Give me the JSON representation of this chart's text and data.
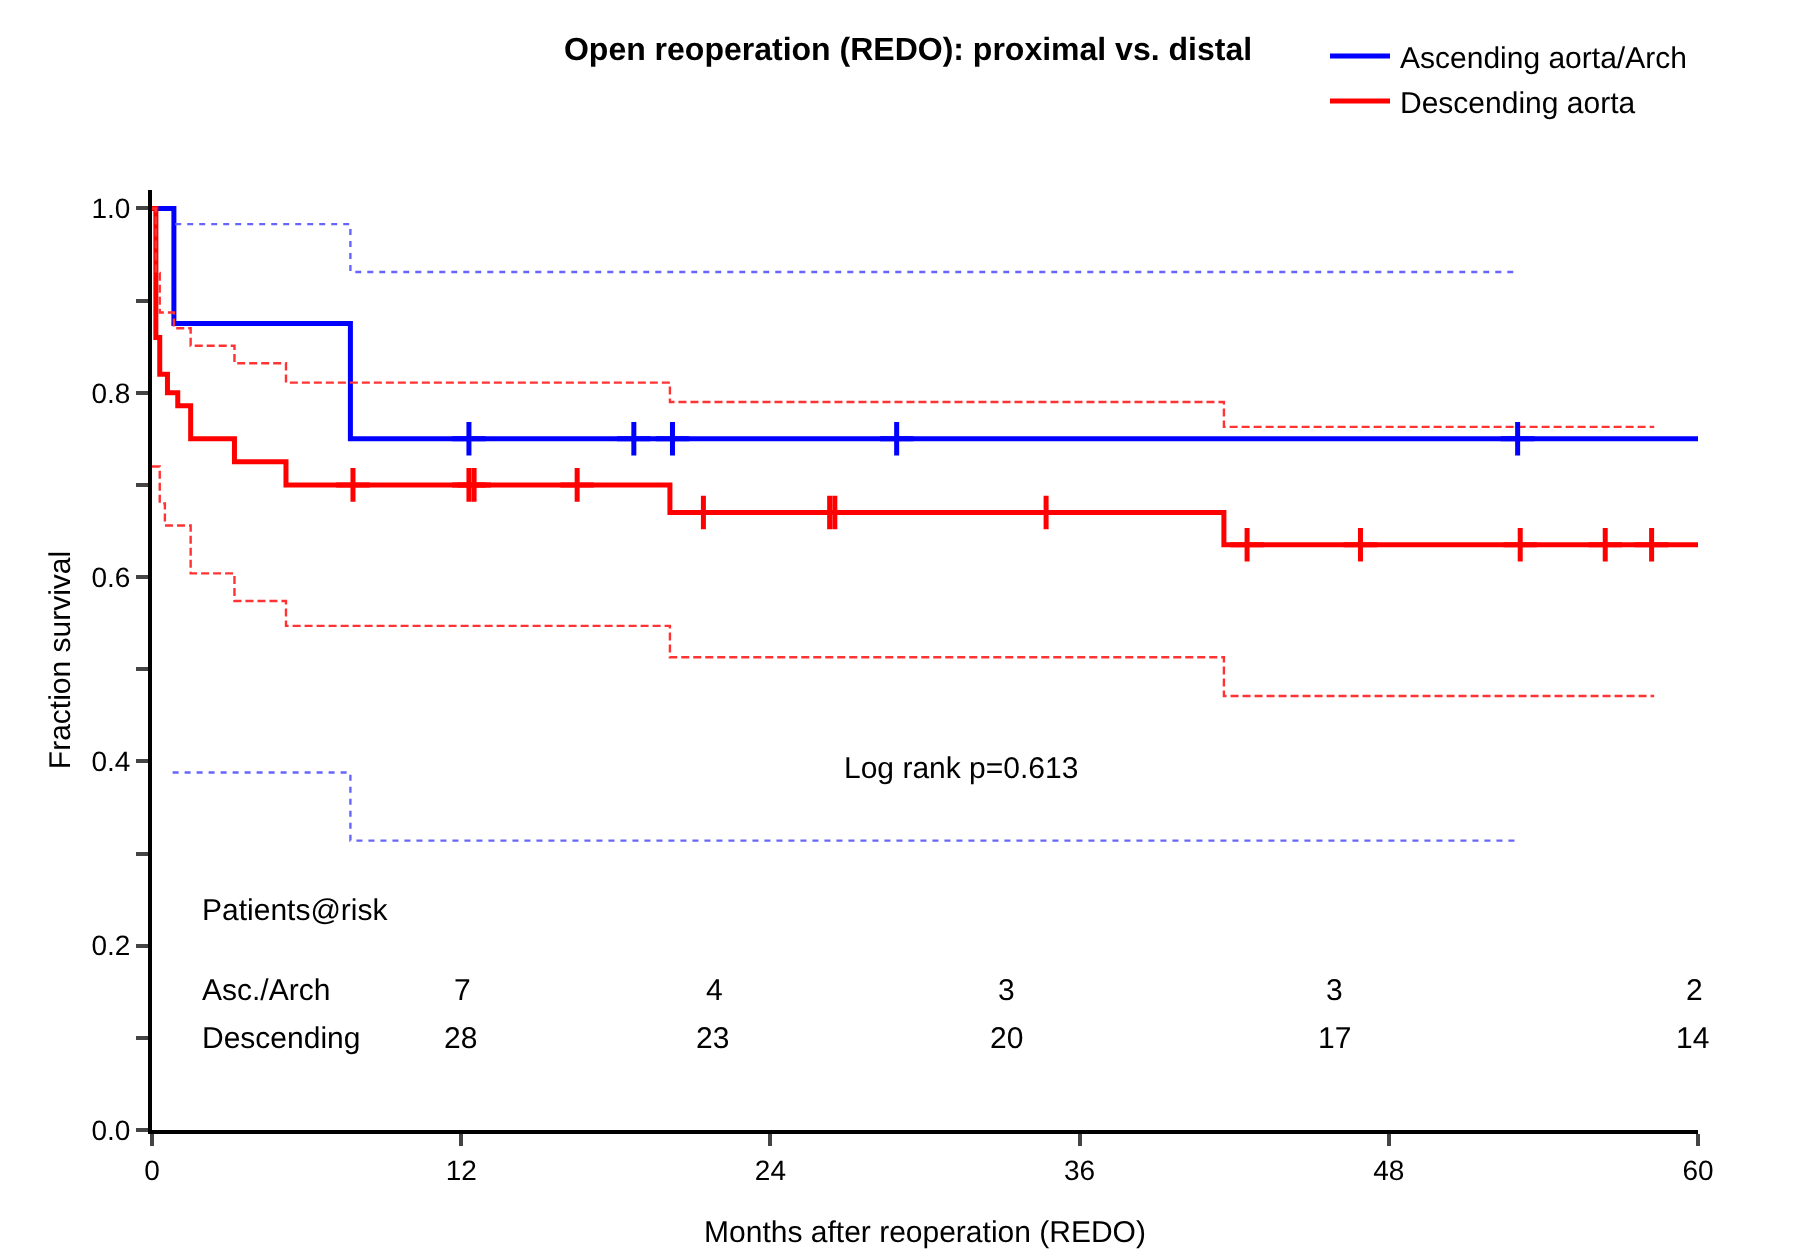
{
  "chart_data": {
    "type": "step",
    "title": "Open reoperation (REDO): proximal vs. distal",
    "xlabel": "Months after reoperation (REDO)",
    "ylabel": "Fraction survival",
    "xlim": [
      0,
      60
    ],
    "xticks": [
      0,
      12,
      24,
      36,
      48,
      60
    ],
    "ylim": [
      0,
      1.02
    ],
    "yticks": [
      {
        "value": 0,
        "label": "0.0"
      },
      {
        "value": 0.1,
        "label": null
      },
      {
        "value": 0.2,
        "label": "0.2"
      },
      {
        "value": 0.3,
        "label": null
      },
      {
        "value": 0.4,
        "label": "0.4"
      },
      {
        "value": 0.5,
        "label": null
      },
      {
        "value": 0.6,
        "label": "0.6"
      },
      {
        "value": 0.7,
        "label": null
      },
      {
        "value": 0.8,
        "label": "0.8"
      },
      {
        "value": 0.9,
        "label": null
      },
      {
        "value": 1,
        "label": "1.0"
      }
    ],
    "grid": false,
    "legend": "top right",
    "series": [
      {
        "name": "Ascending aorta/Arch",
        "color": "#0000ff",
        "line_style": "solid",
        "x": [
          0,
          0.85,
          7.7,
          60
        ],
        "values": [
          1.0,
          0.875,
          0.75,
          0.75
        ]
      },
      {
        "name": "Descending aorta",
        "color": "#ff0000",
        "line_style": "solid",
        "x": [
          0,
          0.15,
          0.3,
          0.6,
          1.0,
          1.5,
          3.2,
          5.2,
          20.1,
          41.6,
          60
        ],
        "values": [
          1.0,
          0.86,
          0.82,
          0.8,
          0.786,
          0.75,
          0.725,
          0.7,
          0.67,
          0.635,
          0.635
        ]
      },
      {
        "color": "#6666ff",
        "line_style": "dotted",
        "x": [
          0.9,
          7.7,
          52.9
        ],
        "values": [
          0.983,
          0.931,
          0.931
        ]
      },
      {
        "color": "#6666ff",
        "line_style": "dotted",
        "x": [
          0.8,
          7.7,
          52.9
        ],
        "values": [
          0.388,
          0.314,
          0.314
        ]
      },
      {
        "color": "#ff3333",
        "line_style": "dashed",
        "x": [
          0,
          0.15,
          0.3,
          0.85,
          1.5,
          3.2,
          5.2,
          20.1,
          41.6,
          58.3
        ],
        "values": [
          1.0,
          0.93,
          0.887,
          0.87,
          0.851,
          0.832,
          0.811,
          0.79,
          0.763,
          0.763
        ]
      },
      {
        "color": "#ff3333",
        "line_style": "dashed",
        "x": [
          0,
          0.3,
          0.5,
          1.5,
          3.2,
          5.2,
          20.1,
          41.6,
          58.3
        ],
        "values": [
          0.72,
          0.68,
          0.656,
          0.604,
          0.574,
          0.547,
          0.513,
          0.471,
          0.471
        ]
      },
      {
        "type": "scatter",
        "marker": "cross",
        "color": "#0000ff",
        "x": [
          12.3,
          18.7,
          20.2,
          28.9,
          53
        ],
        "values": [
          0.75,
          0.75,
          0.75,
          0.75,
          0.75
        ]
      },
      {
        "type": "scatter",
        "marker": "cross",
        "color": "#ff0000",
        "x": [
          7.8,
          12.3,
          12.5,
          16.5,
          21.4,
          26.3,
          26.5,
          34.7,
          42.5,
          46.9,
          53.1,
          56.4,
          58.2
        ],
        "values": [
          0.7,
          0.7,
          0.7,
          0.7,
          0.67,
          0.67,
          0.67,
          0.67,
          0.635,
          0.635,
          0.635,
          0.635,
          0.635
        ]
      }
    ],
    "annotations": [
      "Log rank p=0.613",
      "Patients@risk",
      "Asc./Arch",
      "Descending",
      "7",
      "4",
      "3",
      "3",
      "2",
      "28",
      "23",
      "20",
      "17",
      "14"
    ]
  }
}
